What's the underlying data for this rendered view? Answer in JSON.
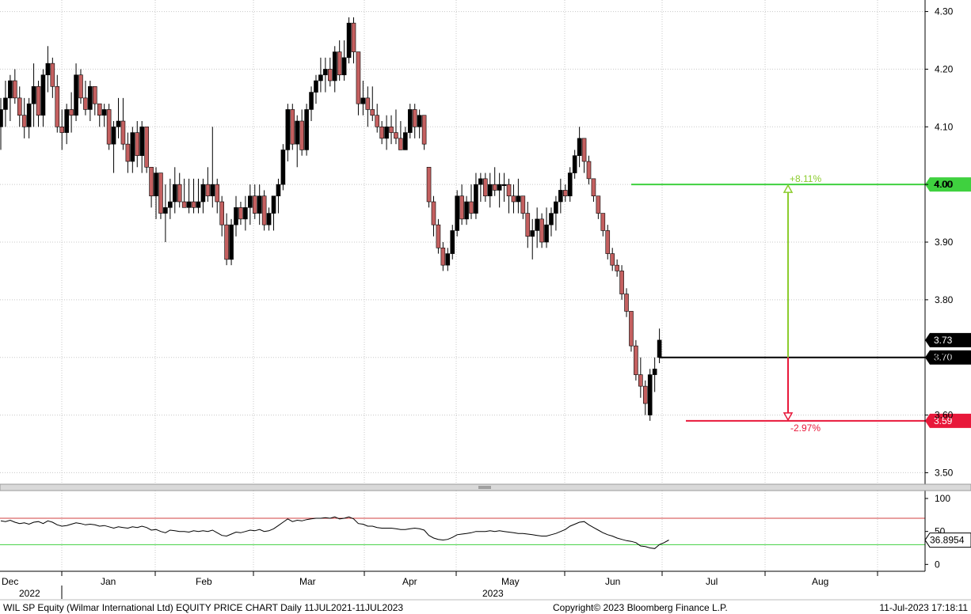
{
  "chart_data": {
    "type": "candlestick",
    "security": "WIL SP Equity",
    "price_axis": {
      "ticks": [
        "4.30",
        "4.20",
        "4.10",
        "4.00",
        "3.90",
        "3.80",
        "3.70",
        "3.60",
        "3.50"
      ],
      "ylim": [
        3.48,
        4.32
      ]
    },
    "rsi_axis": {
      "ticks": [
        "100",
        "50",
        "0"
      ],
      "ylim": [
        -8,
        112
      ],
      "overbought": 70,
      "oversold": 30,
      "last_value": "36.8954"
    },
    "x_labels": {
      "months": [
        "Dec",
        "Jan",
        "Feb",
        "Mar",
        "Apr",
        "May",
        "Jun",
        "Jul",
        "Aug"
      ],
      "years": [
        "2022",
        "2023"
      ]
    },
    "price_tags": {
      "last": "3.73",
      "mid": "3.70",
      "target_up": "4.00",
      "target_down": "3.59"
    },
    "annotations": {
      "up_pct": "+8.11%",
      "down_pct": "-2.97%"
    },
    "up_candle_color": "#000000",
    "down_candle_color": "#c46060",
    "candles": [
      [
        4.1,
        4.15,
        4.06,
        4.13
      ],
      [
        4.13,
        4.18,
        4.1,
        4.15
      ],
      [
        4.15,
        4.19,
        4.11,
        4.18
      ],
      [
        4.18,
        4.2,
        4.14,
        4.15
      ],
      [
        4.15,
        4.17,
        4.1,
        4.12
      ],
      [
        4.12,
        4.15,
        4.08,
        4.1
      ],
      [
        4.1,
        4.15,
        4.08,
        4.14
      ],
      [
        4.14,
        4.21,
        4.1,
        4.17
      ],
      [
        4.17,
        4.18,
        4.1,
        4.12
      ],
      [
        4.12,
        4.2,
        4.1,
        4.19
      ],
      [
        4.19,
        4.24,
        4.16,
        4.21
      ],
      [
        4.21,
        4.22,
        4.15,
        4.17
      ],
      [
        4.17,
        4.19,
        4.09,
        4.1
      ],
      [
        4.1,
        4.13,
        4.06,
        4.09
      ],
      [
        4.09,
        4.14,
        4.07,
        4.13
      ],
      [
        4.13,
        4.16,
        4.09,
        4.12
      ],
      [
        4.12,
        4.21,
        4.11,
        4.19
      ],
      [
        4.19,
        4.2,
        4.14,
        4.15
      ],
      [
        4.15,
        4.18,
        4.12,
        4.13
      ],
      [
        4.13,
        4.18,
        4.11,
        4.17
      ],
      [
        4.17,
        4.17,
        4.12,
        4.14
      ],
      [
        4.14,
        4.14,
        4.1,
        4.12
      ],
      [
        4.12,
        4.14,
        4.1,
        4.13
      ],
      [
        4.13,
        4.14,
        4.06,
        4.07
      ],
      [
        4.07,
        4.11,
        4.02,
        4.1
      ],
      [
        4.1,
        4.15,
        4.08,
        4.11
      ],
      [
        4.11,
        4.15,
        4.06,
        4.07
      ],
      [
        4.07,
        4.09,
        4.02,
        4.04
      ],
      [
        4.04,
        4.1,
        4.02,
        4.09
      ],
      [
        4.09,
        4.11,
        4.03,
        4.05
      ],
      [
        4.05,
        4.11,
        4.02,
        4.1
      ],
      [
        4.1,
        4.1,
        4.02,
        4.03
      ],
      [
        4.03,
        4.03,
        3.96,
        3.98
      ],
      [
        3.98,
        4.03,
        3.94,
        4.02
      ],
      [
        4.02,
        4.02,
        3.94,
        3.95
      ],
      [
        3.95,
        4.0,
        3.9,
        3.96
      ],
      [
        3.96,
        4.01,
        3.94,
        3.97
      ],
      [
        3.97,
        4.03,
        3.95,
        4.0
      ],
      [
        4.0,
        4.02,
        3.96,
        3.97
      ],
      [
        3.97,
        4.01,
        3.96,
        3.96
      ],
      [
        3.96,
        4.01,
        3.95,
        3.97
      ],
      [
        3.97,
        4.01,
        3.95,
        3.96
      ],
      [
        3.96,
        4.01,
        3.95,
        3.97
      ],
      [
        3.97,
        4.01,
        3.95,
        4.0
      ],
      [
        4.0,
        4.03,
        3.97,
        3.98
      ],
      [
        3.98,
        4.1,
        3.96,
        4.0
      ],
      [
        4.0,
        4.01,
        3.95,
        3.97
      ],
      [
        3.97,
        3.98,
        3.91,
        3.93
      ],
      [
        3.93,
        3.95,
        3.86,
        3.87
      ],
      [
        3.87,
        3.94,
        3.86,
        3.93
      ],
      [
        3.93,
        3.98,
        3.91,
        3.96
      ],
      [
        3.96,
        3.97,
        3.93,
        3.94
      ],
      [
        3.94,
        3.98,
        3.92,
        3.96
      ],
      [
        3.96,
        4.0,
        3.93,
        3.98
      ],
      [
        3.98,
        4.0,
        3.94,
        3.95
      ],
      [
        3.95,
        4.0,
        3.93,
        3.98
      ],
      [
        3.98,
        3.99,
        3.92,
        3.93
      ],
      [
        3.93,
        3.96,
        3.92,
        3.95
      ],
      [
        3.95,
        3.98,
        3.92,
        3.98
      ],
      [
        3.98,
        4.01,
        3.95,
        4.0
      ],
      [
        4.0,
        4.07,
        3.99,
        4.06
      ],
      [
        4.06,
        4.14,
        4.04,
        4.13
      ],
      [
        4.13,
        4.14,
        4.06,
        4.07
      ],
      [
        4.07,
        4.12,
        4.03,
        4.11
      ],
      [
        4.11,
        4.13,
        4.05,
        4.06
      ],
      [
        4.06,
        4.14,
        4.05,
        4.13
      ],
      [
        4.13,
        4.17,
        4.11,
        4.16
      ],
      [
        4.16,
        4.19,
        4.14,
        4.18
      ],
      [
        4.18,
        4.22,
        4.16,
        4.19
      ],
      [
        4.19,
        4.22,
        4.16,
        4.2
      ],
      [
        4.2,
        4.22,
        4.17,
        4.18
      ],
      [
        4.18,
        4.24,
        4.16,
        4.23
      ],
      [
        4.23,
        4.25,
        4.18,
        4.19
      ],
      [
        4.19,
        4.25,
        4.18,
        4.22
      ],
      [
        4.22,
        4.29,
        4.21,
        4.28
      ],
      [
        4.28,
        4.29,
        4.21,
        4.23
      ],
      [
        4.23,
        4.23,
        4.12,
        4.14
      ],
      [
        4.14,
        4.18,
        4.12,
        4.15
      ],
      [
        4.15,
        4.17,
        4.1,
        4.13
      ],
      [
        4.13,
        4.17,
        4.11,
        4.12
      ],
      [
        4.12,
        4.14,
        4.09,
        4.1
      ],
      [
        4.1,
        4.11,
        4.07,
        4.08
      ],
      [
        4.08,
        4.12,
        4.06,
        4.1
      ],
      [
        4.1,
        4.12,
        4.07,
        4.09
      ],
      [
        4.09,
        4.13,
        4.07,
        4.08
      ],
      [
        4.08,
        4.11,
        4.06,
        4.06
      ],
      [
        4.06,
        4.1,
        4.06,
        4.09
      ],
      [
        4.09,
        4.14,
        4.08,
        4.13
      ],
      [
        4.13,
        4.14,
        4.08,
        4.1
      ],
      [
        4.1,
        4.13,
        4.08,
        4.12
      ],
      [
        4.12,
        4.12,
        4.06,
        4.07
      ],
      [
        4.03,
        4.03,
        3.96,
        3.97
      ],
      [
        3.97,
        3.98,
        3.91,
        3.93
      ],
      [
        3.93,
        3.94,
        3.88,
        3.89
      ],
      [
        3.89,
        3.9,
        3.85,
        3.86
      ],
      [
        3.86,
        3.89,
        3.85,
        3.88
      ],
      [
        3.88,
        3.93,
        3.87,
        3.92
      ],
      [
        3.92,
        3.99,
        3.91,
        3.98
      ],
      [
        3.98,
        4.0,
        3.93,
        3.94
      ],
      [
        3.94,
        3.98,
        3.93,
        3.97
      ],
      [
        3.97,
        4.0,
        3.94,
        3.95
      ],
      [
        3.95,
        4.02,
        3.94,
        4.0
      ],
      [
        4.0,
        4.02,
        3.97,
        4.01
      ],
      [
        4.01,
        4.02,
        3.97,
        3.98
      ],
      [
        3.98,
        4.02,
        3.96,
        4.0
      ],
      [
        4.0,
        4.03,
        3.98,
        3.99
      ],
      [
        3.99,
        4.02,
        3.96,
        4.0
      ],
      [
        4.0,
        4.02,
        3.97,
        4.0
      ],
      [
        4.0,
        4.01,
        3.95,
        3.98
      ],
      [
        3.98,
        4.0,
        3.95,
        3.97
      ],
      [
        3.97,
        4.01,
        3.95,
        3.98
      ],
      [
        3.98,
        3.98,
        3.94,
        3.95
      ],
      [
        3.95,
        3.97,
        3.89,
        3.91
      ],
      [
        3.91,
        3.94,
        3.87,
        3.92
      ],
      [
        3.92,
        3.96,
        3.89,
        3.94
      ],
      [
        3.94,
        3.95,
        3.89,
        3.9
      ],
      [
        3.9,
        3.96,
        3.89,
        3.93
      ],
      [
        3.93,
        3.96,
        3.91,
        3.95
      ],
      [
        3.95,
        3.98,
        3.92,
        3.97
      ],
      [
        3.97,
        4.01,
        3.95,
        3.99
      ],
      [
        3.99,
        4.0,
        3.97,
        3.98
      ],
      [
        3.98,
        4.03,
        3.97,
        4.02
      ],
      [
        4.02,
        4.06,
        4.01,
        4.05
      ],
      [
        4.05,
        4.1,
        4.03,
        4.08
      ],
      [
        4.08,
        4.08,
        4.02,
        4.04
      ],
      [
        4.04,
        4.05,
        4.0,
        4.01
      ],
      [
        4.01,
        4.01,
        3.97,
        3.98
      ],
      [
        3.98,
        3.98,
        3.94,
        3.95
      ],
      [
        3.95,
        3.95,
        3.91,
        3.92
      ],
      [
        3.92,
        3.93,
        3.87,
        3.88
      ],
      [
        3.88,
        3.89,
        3.85,
        3.86
      ],
      [
        3.86,
        3.87,
        3.84,
        3.85
      ],
      [
        3.85,
        3.86,
        3.8,
        3.81
      ],
      [
        3.81,
        3.82,
        3.77,
        3.78
      ],
      [
        3.78,
        3.78,
        3.71,
        3.72
      ],
      [
        3.72,
        3.73,
        3.66,
        3.67
      ],
      [
        3.67,
        3.7,
        3.63,
        3.65
      ],
      [
        3.65,
        3.66,
        3.6,
        3.62
      ],
      [
        3.6,
        3.68,
        3.59,
        3.67
      ],
      [
        3.67,
        3.7,
        3.64,
        3.68
      ],
      [
        3.7,
        3.75,
        3.69,
        3.73
      ]
    ],
    "rsi": [
      66,
      65,
      67,
      64,
      62,
      63,
      61,
      64,
      65,
      62,
      66,
      64,
      60,
      58,
      59,
      61,
      63,
      62,
      60,
      61,
      60,
      58,
      59,
      57,
      55,
      57,
      56,
      55,
      57,
      56,
      58,
      56,
      52,
      53,
      50,
      48,
      52,
      51,
      50,
      50,
      49,
      51,
      50,
      51,
      50,
      52,
      48,
      44,
      43,
      46,
      49,
      48,
      50,
      52,
      51,
      53,
      50,
      51,
      54,
      59,
      64,
      69,
      65,
      67,
      66,
      68,
      69,
      70,
      70,
      71,
      70,
      72,
      69,
      70,
      72,
      69,
      62,
      61,
      58,
      58,
      56,
      55,
      55,
      55,
      54,
      53,
      53,
      54,
      55,
      54,
      52,
      44,
      40,
      38,
      37,
      38,
      41,
      45,
      46,
      47,
      48,
      50,
      50,
      50,
      51,
      50,
      51,
      50,
      49,
      48,
      47,
      47,
      46,
      45,
      44,
      43,
      43,
      45,
      47,
      50,
      53,
      58,
      61,
      64,
      65,
      60,
      56,
      52,
      48,
      45,
      43,
      40,
      38,
      36,
      35,
      33,
      28,
      27,
      25,
      24,
      30,
      33,
      37
    ]
  },
  "footer": {
    "left": "WIL SP Equity (Wilmar International Ltd) EQUITY PRICE CHART  Daily 11JUL2021-11JUL2023",
    "center": "Copyright© 2023 Bloomberg Finance L.P.",
    "right": "11-Jul-2023 17:18:11"
  }
}
